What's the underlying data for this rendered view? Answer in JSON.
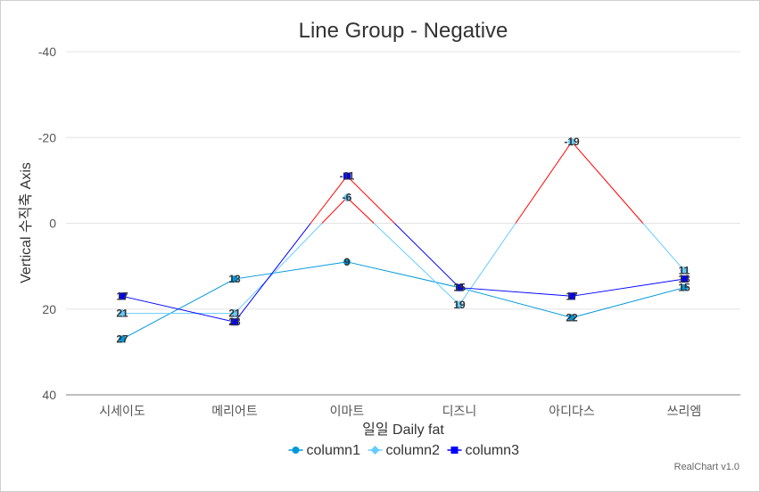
{
  "chart_data": {
    "type": "line",
    "title": "Line Group - Negative",
    "xlabel": "일일 Daily fat",
    "ylabel": "Vertical 수직축 Axis",
    "categories": [
      "시세이도",
      "메리어트",
      "이마트",
      "디즈니",
      "아디다스",
      "쓰리엠"
    ],
    "ylim": [
      40,
      -40
    ],
    "y_reversed": true,
    "y_ticks": [
      -40,
      -20,
      0,
      20,
      40
    ],
    "grid": true,
    "legend_position": "bottom",
    "negative_color": "#ff0000",
    "series": [
      {
        "name": "column1",
        "color": "#0098db",
        "marker": "circle",
        "values": [
          27,
          13,
          9,
          15,
          22,
          15
        ]
      },
      {
        "name": "column2",
        "color": "#66ccff",
        "marker": "diamond",
        "values": [
          21,
          21,
          -6,
          19,
          -19,
          11
        ]
      },
      {
        "name": "column3",
        "color": "#0000ff",
        "marker": "square",
        "values": [
          17,
          23,
          -11,
          15,
          17,
          13
        ]
      }
    ],
    "credit": "RealChart v1.0"
  }
}
